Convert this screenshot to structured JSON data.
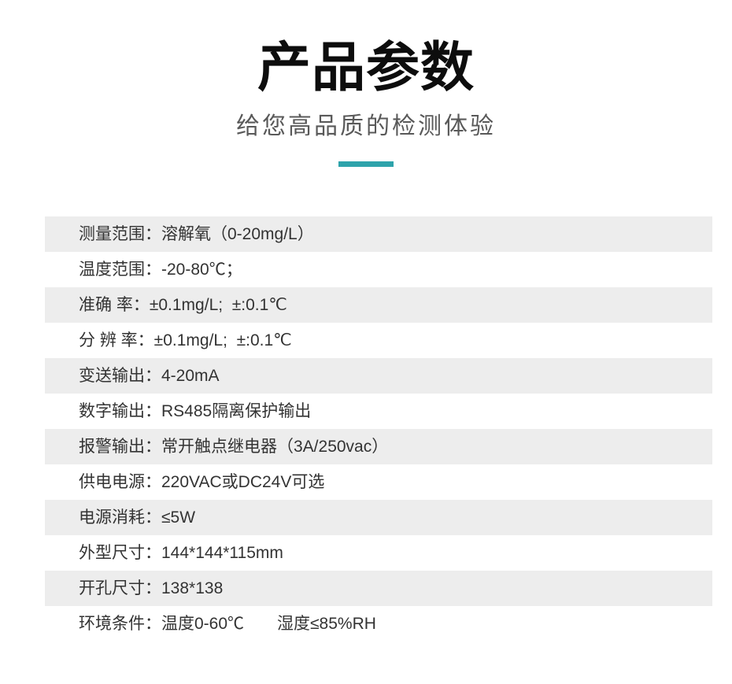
{
  "page": {
    "title": "产品参数",
    "subtitle": "给您高品质的检测体验",
    "accent_color": "#2EA3AB",
    "row_alt_color": "#EDEDED"
  },
  "table": {
    "separator": "：",
    "rows": [
      {
        "label": "测量范围",
        "value": "溶解氧（0-20mg/L）"
      },
      {
        "label": "温度范围",
        "value": "-20-80℃；"
      },
      {
        "label": "准确 率",
        "value": "±0.1mg/L;  ±:0.1℃"
      },
      {
        "label": "分 辨 率",
        "value": "±0.1mg/L;  ±:0.1℃"
      },
      {
        "label": "变送输出",
        "value": "4-20mA"
      },
      {
        "label": "数字输出",
        "value": "RS485隔离保护输出"
      },
      {
        "label": "报警输出",
        "value": "常开触点继电器（3A/250vac）"
      },
      {
        "label": "供电电源",
        "value": "220VAC或DC24V可选"
      },
      {
        "label": "电源消耗",
        "value": "≤5W"
      },
      {
        "label": "外型尺寸",
        "value": "144*144*115mm"
      },
      {
        "label": "开孔尺寸",
        "value": "138*138"
      },
      {
        "label": "环境条件",
        "value": "温度0-60℃　　湿度≤85%RH"
      }
    ]
  }
}
